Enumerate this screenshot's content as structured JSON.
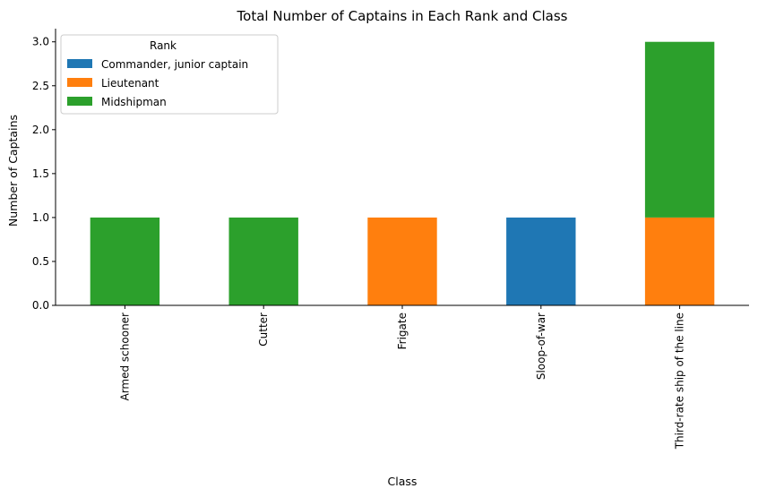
{
  "chart_data": {
    "type": "bar",
    "stacked": true,
    "title": "Total Number of Captains in Each Rank and Class",
    "xlabel": "Class",
    "ylabel": "Number of Captains",
    "categories": [
      "Armed schooner",
      "Cutter",
      "Frigate",
      "Sloop-of-war",
      "Third-rate ship of the line"
    ],
    "series": [
      {
        "name": "Commander, junior captain",
        "color": "#1f77b4",
        "values": [
          0,
          0,
          0,
          1,
          0
        ]
      },
      {
        "name": "Lieutenant",
        "color": "#ff7f0e",
        "values": [
          0,
          0,
          1,
          0,
          1
        ]
      },
      {
        "name": "Midshipman",
        "color": "#2ca02c",
        "values": [
          1,
          1,
          0,
          0,
          2
        ]
      }
    ],
    "ylim": [
      0,
      3.15
    ],
    "yticks": [
      "0.0",
      "0.5",
      "1.0",
      "1.5",
      "2.0",
      "2.5",
      "3.0"
    ],
    "legend": {
      "title": "Rank",
      "placement": "top-left"
    },
    "grid": false
  }
}
